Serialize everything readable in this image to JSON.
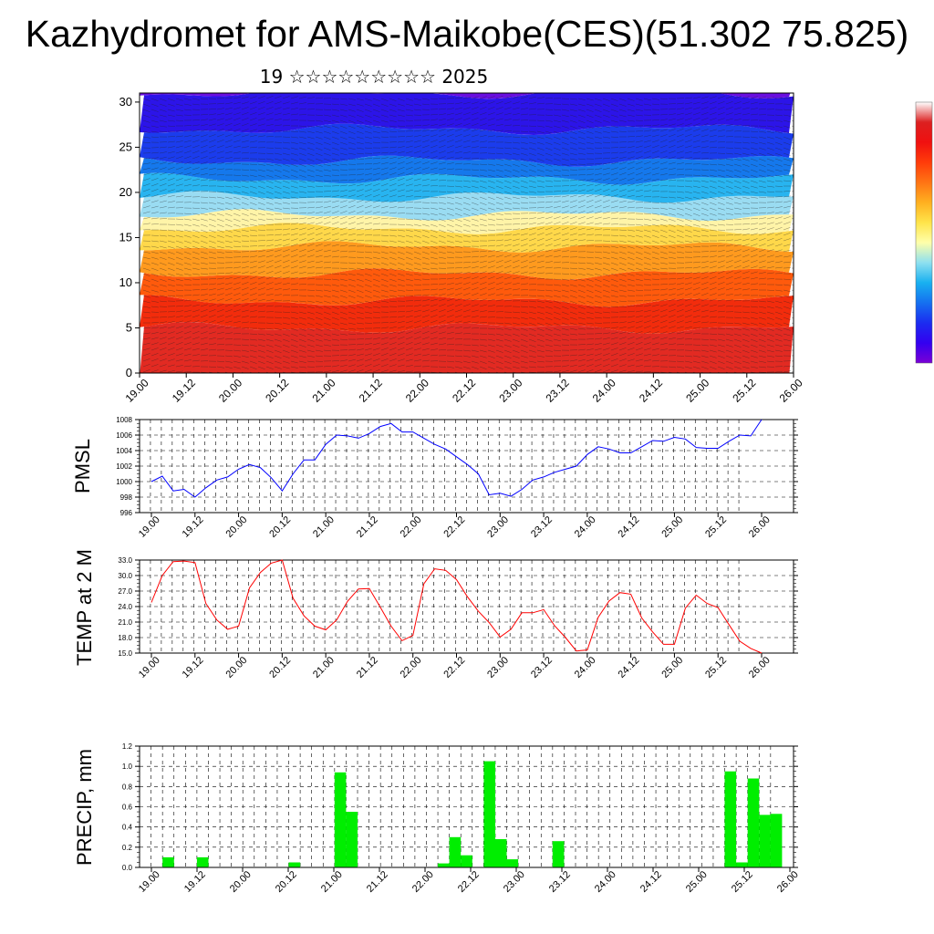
{
  "title": "Kazhydromet for AMS-Maikobe(CES)(51.302 75.825)",
  "subtitle": "19 ☆☆☆☆☆☆☆☆☆ 2025",
  "x_tick_labels": [
    "19.00",
    "19.12",
    "20.00",
    "20.12",
    "21.00",
    "21.12",
    "22.00",
    "22.12",
    "23.00",
    "23.12",
    "24.00",
    "24.12",
    "25.00",
    "25.12",
    "26.00"
  ],
  "colors": {
    "pmsl_line": "#0000ff",
    "temp_line": "#ff0000",
    "precip_bar": "#00ee00",
    "colorbar": [
      "#7a00d6",
      "#3300f0",
      "#1b2cf0",
      "#1570f0",
      "#18b0f0",
      "#8ee0f0",
      "#ffffaa",
      "#ffe44a",
      "#ffb020",
      "#ff7414",
      "#ff3c0a",
      "#f01010",
      "#dc2020",
      "#ffffff"
    ]
  },
  "chart_data": [
    {
      "type": "heatmap",
      "name_in_image": "",
      "y_ticks": [
        0,
        5,
        10,
        15,
        20,
        25,
        30
      ],
      "ylim": [
        0,
        31
      ],
      "x_range": [
        "19.00",
        "26.00"
      ],
      "bands": [
        {
          "level": 0,
          "color": "#e22a22"
        },
        {
          "level": 5,
          "color": "#f22c0c"
        },
        {
          "level": 8,
          "color": "#ff5a0c"
        },
        {
          "level": 11,
          "color": "#ff9a1e"
        },
        {
          "level": 14,
          "color": "#ffd84a"
        },
        {
          "level": 16,
          "color": "#fff4a8"
        },
        {
          "level": 17.5,
          "color": "#9adcf2"
        },
        {
          "level": 19.5,
          "color": "#28b4f0"
        },
        {
          "level": 21.5,
          "color": "#1578ec"
        },
        {
          "level": 23.5,
          "color": "#1b3cec"
        },
        {
          "level": 27,
          "color": "#2c14e8"
        },
        {
          "level": 31,
          "color": "#6a0ee0"
        }
      ],
      "has_wind_barbs": true,
      "grid": false
    },
    {
      "type": "line",
      "ylabel": "PMSL",
      "ylim": [
        996,
        1008
      ],
      "y_ticks": [
        996,
        998,
        1000,
        1002,
        1004,
        1006,
        1008
      ],
      "x_range": [
        0,
        168
      ],
      "grid": true,
      "series": [
        {
          "x": [
            0,
            3,
            6,
            9,
            12,
            15,
            18,
            21,
            24,
            27,
            30,
            33,
            36,
            39,
            42,
            45,
            48,
            51,
            54,
            57,
            60,
            63,
            66,
            69,
            72,
            75,
            78,
            81,
            84,
            87,
            90,
            93,
            96,
            99,
            102,
            105,
            108,
            111,
            114,
            117,
            120,
            123,
            126,
            129,
            132,
            135,
            138,
            141,
            144,
            147,
            150,
            153,
            156,
            159,
            162,
            165,
            168
          ],
          "values": [
            1000.0,
            1000.7,
            998.8,
            999.0,
            998.0,
            999.2,
            1000.2,
            1000.6,
            1001.6,
            1002.2,
            1001.8,
            1000.5,
            998.8,
            1001.0,
            1002.8,
            1002.8,
            1004.8,
            1006.0,
            1005.9,
            1005.6,
            1006.2,
            1007.1,
            1007.5,
            1006.4,
            1006.4,
            1005.6,
            1004.8,
            1004.2,
            1003.2,
            1002.2,
            1001.0,
            998.3,
            998.5,
            998.1,
            999.0,
            1000.2,
            1000.6,
            1001.2,
            1001.6,
            1002.0,
            1003.5,
            1004.5,
            1004.2,
            1003.7,
            1003.7,
            1004.5,
            1005.3,
            1005.2,
            1005.7,
            1005.5,
            1004.4,
            1004.3,
            1004.3,
            1005.2,
            1006.0,
            1005.9,
            1008.0
          ]
        }
      ]
    },
    {
      "type": "line",
      "ylabel": "TEMP at 2 M",
      "ylim": [
        15,
        33
      ],
      "y_ticks": [
        "15.0",
        "18.0",
        "21.0",
        "24.0",
        "27.0",
        "30.0",
        "33.0"
      ],
      "x_range": [
        0,
        168
      ],
      "grid": true,
      "series": [
        {
          "x": [
            0,
            3,
            6,
            9,
            12,
            15,
            18,
            21,
            24,
            27,
            30,
            33,
            36,
            39,
            42,
            45,
            48,
            51,
            54,
            57,
            60,
            63,
            66,
            69,
            72,
            75,
            78,
            81,
            84,
            87,
            90,
            93,
            96,
            99,
            102,
            105,
            108,
            111,
            114,
            117,
            120,
            123,
            126,
            129,
            132,
            135,
            138,
            141,
            144,
            147,
            150,
            153,
            156,
            159,
            162,
            165,
            168
          ],
          "values": [
            24.8,
            30.0,
            32.7,
            32.8,
            32.5,
            24.6,
            21.4,
            19.6,
            20.2,
            27.6,
            30.6,
            32.4,
            33.0,
            25.6,
            22.2,
            20.2,
            19.5,
            21.4,
            25.0,
            27.4,
            27.5,
            23.9,
            20.2,
            17.4,
            18.4,
            28.4,
            31.3,
            31.0,
            29.2,
            25.9,
            23.1,
            20.9,
            18.1,
            19.6,
            22.8,
            22.8,
            23.4,
            20.3,
            18.0,
            15.4,
            15.6,
            21.9,
            25.1,
            26.7,
            26.4,
            21.8,
            19.1,
            16.7,
            16.7,
            23.7,
            26.2,
            24.6,
            23.8,
            20.5,
            17.3,
            15.9,
            15.0
          ]
        }
      ]
    },
    {
      "type": "bar",
      "ylabel": "PRECIP, mm",
      "ylim": [
        0,
        1.2
      ],
      "y_ticks": [
        "0.0",
        "0.2",
        "0.4",
        "0.6",
        "0.8",
        "1.0",
        "1.2"
      ],
      "x_range": [
        0,
        171
      ],
      "grid": true,
      "bar_width": 3,
      "bars": [
        {
          "x": 6,
          "value": 0.1
        },
        {
          "x": 15,
          "value": 0.1
        },
        {
          "x": 39,
          "value": 0.05
        },
        {
          "x": 51,
          "value": 0.94
        },
        {
          "x": 54,
          "value": 0.55
        },
        {
          "x": 78,
          "value": 0.04
        },
        {
          "x": 81,
          "value": 0.3
        },
        {
          "x": 84,
          "value": 0.12
        },
        {
          "x": 90,
          "value": 1.05
        },
        {
          "x": 93,
          "value": 0.28
        },
        {
          "x": 96,
          "value": 0.08
        },
        {
          "x": 108,
          "value": 0.26
        },
        {
          "x": 153,
          "value": 0.95
        },
        {
          "x": 156,
          "value": 0.05
        },
        {
          "x": 159,
          "value": 0.88
        },
        {
          "x": 162,
          "value": 0.52
        },
        {
          "x": 165,
          "value": 0.53
        }
      ]
    }
  ]
}
